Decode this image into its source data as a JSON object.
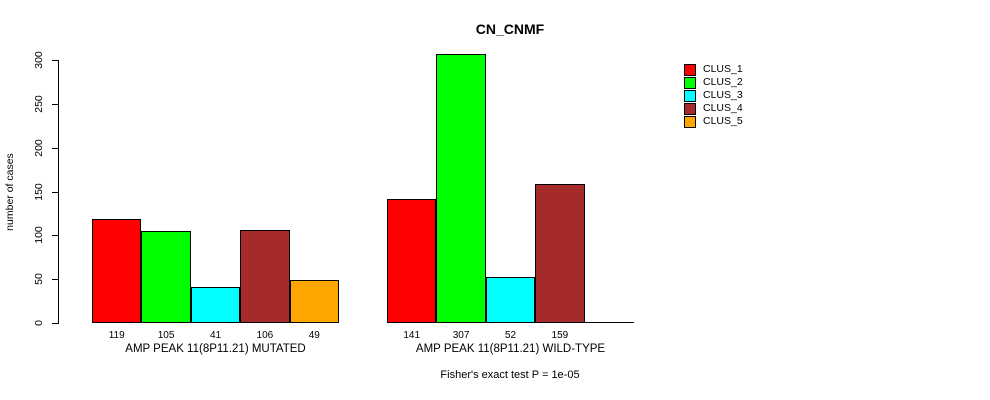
{
  "chart_data": {
    "type": "bar",
    "title": "CN_CNMF",
    "ylabel": "number of cases",
    "xlabel": "",
    "footnote": "Fisher's exact test P = 1e-05",
    "ylim": [
      0,
      300
    ],
    "yticks": [
      0,
      50,
      100,
      150,
      200,
      250,
      300
    ],
    "grid": false,
    "legend_position": "right",
    "bar_value_labels": true,
    "categories": [
      "AMP PEAK 11(8P11.21) MUTATED",
      "AMP PEAK 11(8P11.21) WILD-TYPE"
    ],
    "series": [
      {
        "name": "CLUS_1",
        "color": "#FF0000",
        "values": [
          119,
          141
        ]
      },
      {
        "name": "CLUS_2",
        "color": "#00FF00",
        "values": [
          105,
          307
        ]
      },
      {
        "name": "CLUS_3",
        "color": "#00FFFF",
        "values": [
          41,
          52
        ]
      },
      {
        "name": "CLUS_4",
        "color": "#A52A2A",
        "values": [
          106,
          159
        ]
      },
      {
        "name": "CLUS_5",
        "color": "#FFA500",
        "values": [
          49,
          0
        ]
      }
    ]
  },
  "colors": {
    "background": "#FFFFFF",
    "axis": "#000000",
    "text": "#000000"
  }
}
